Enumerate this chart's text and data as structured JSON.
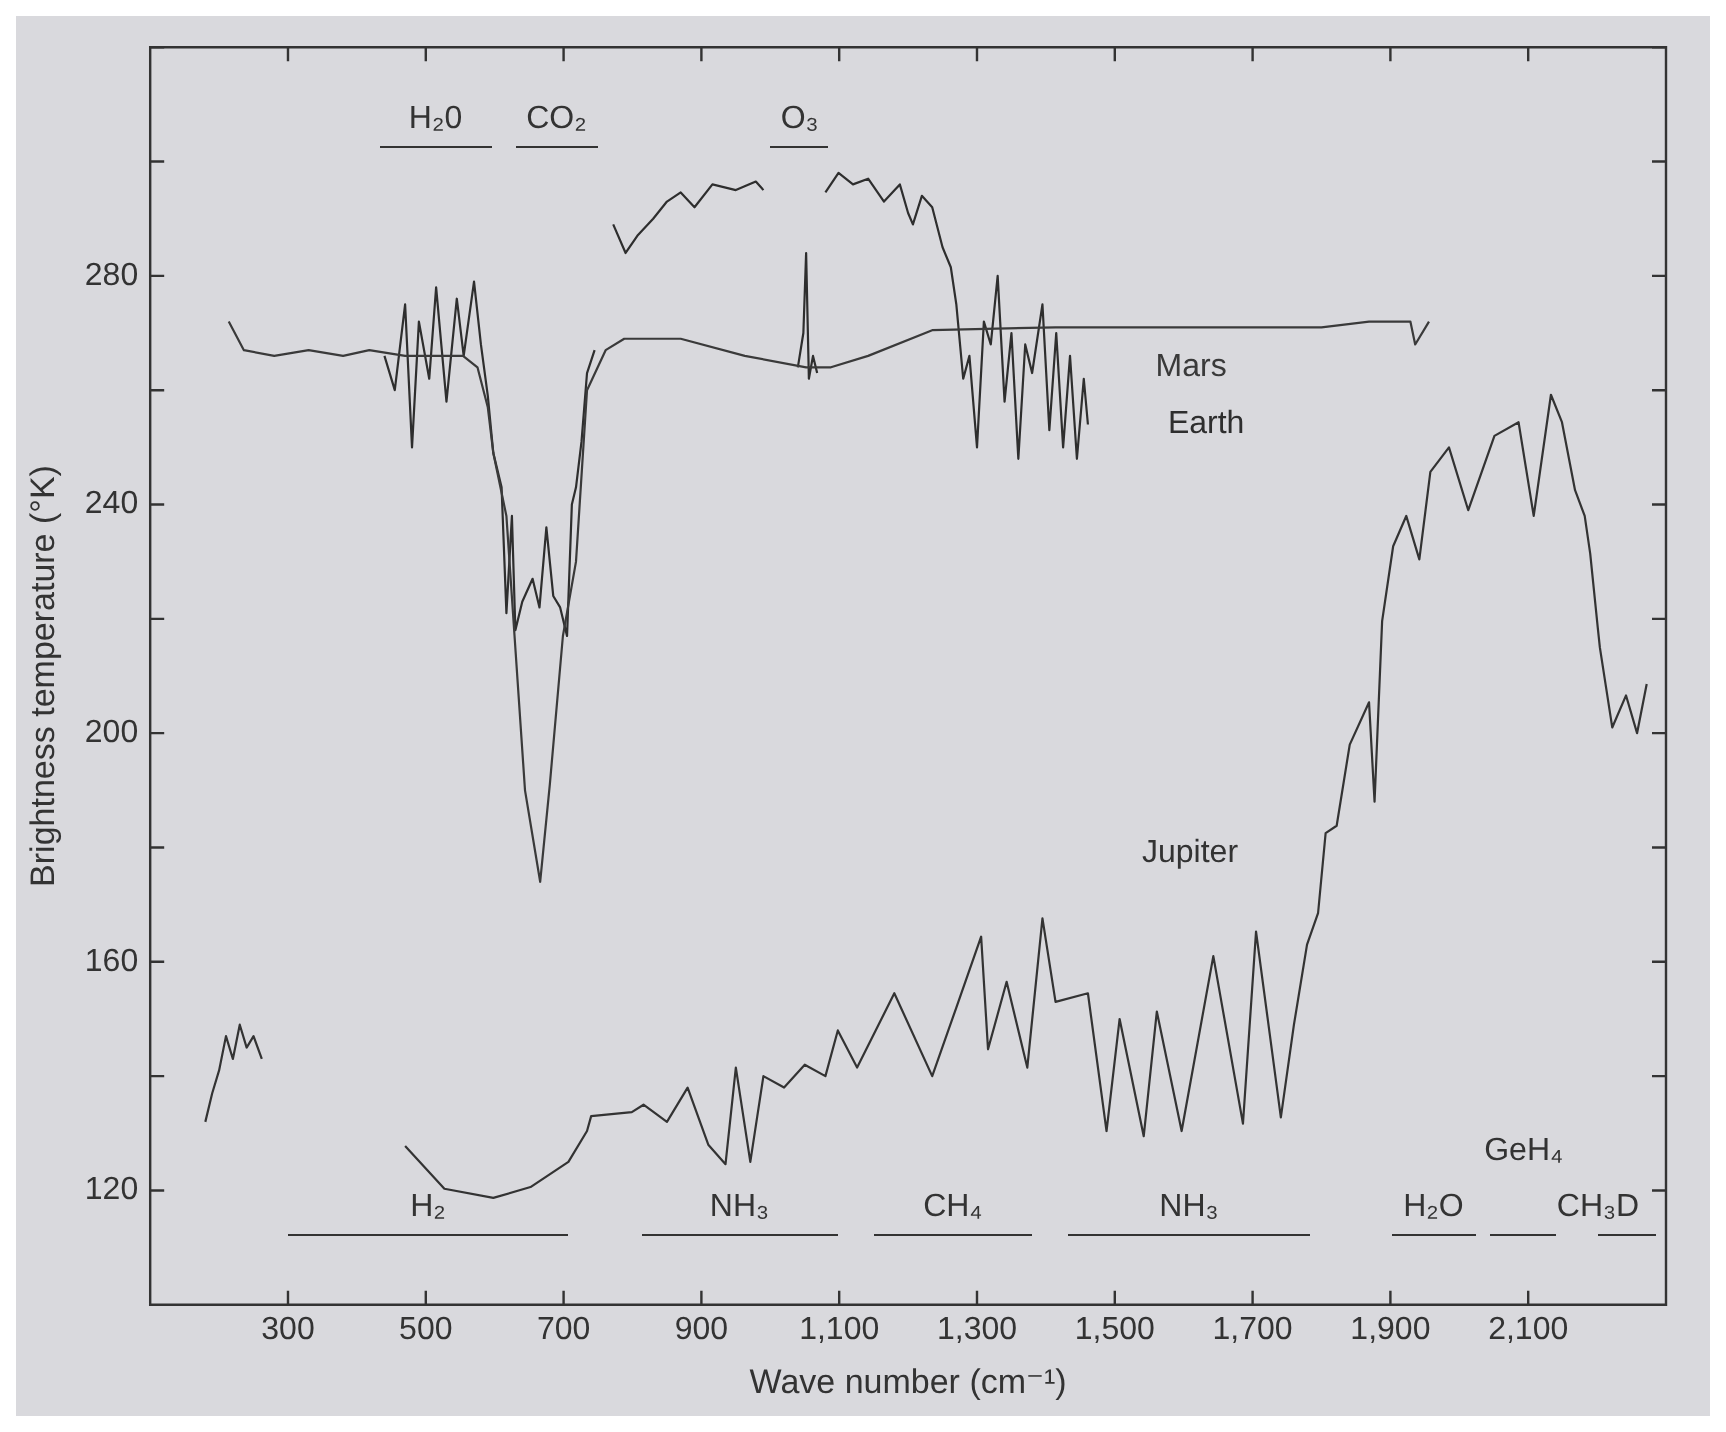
{
  "chart_data": {
    "type": "line",
    "xlabel": "Wave number (cm⁻¹)",
    "ylabel": "Brightness temperature (°K)",
    "xlim": [
      100,
      2300
    ],
    "ylim": [
      100,
      320
    ],
    "xticks": [
      300,
      500,
      700,
      900,
      {
        "value": 1100,
        "label": "1,100"
      },
      {
        "value": 1300,
        "label": "1,300"
      },
      {
        "value": 1500,
        "label": "1,500"
      },
      {
        "value": 1700,
        "label": "1,700"
      },
      {
        "value": 1900,
        "label": "1,900"
      },
      {
        "value": 2100,
        "label": "2,100"
      }
    ],
    "yticks": [
      120,
      {
        "value": 140,
        "label": null
      },
      160,
      {
        "value": 180,
        "label": null
      },
      200,
      {
        "value": 220,
        "label": null
      },
      240,
      {
        "value": 260,
        "label": null
      },
      280,
      {
        "value": 300,
        "label": null
      },
      {
        "value": 320,
        "label": null
      }
    ],
    "grid": false,
    "legend": false,
    "marker": "none",
    "line_style": "solid",
    "series": [
      {
        "name": "Mars",
        "color": "#3a3a3a",
        "x": [
          214,
          236,
          280,
          330,
          380,
          418,
          470,
          520,
          554,
          575,
          590,
          598,
          617,
          644,
          666,
          680,
          699,
          718,
          734,
          761,
          788,
          870,
          963,
          1052,
          1088,
          1142,
          1235,
          1414,
          1600,
          1800,
          1869,
          1929,
          1936,
          1956
        ],
        "values": [
          272,
          267,
          266,
          267,
          266,
          267,
          266,
          266,
          266,
          264,
          257,
          249,
          238,
          190,
          174,
          191,
          217,
          230,
          260,
          267,
          269,
          269,
          266,
          264,
          264,
          266,
          270.5,
          271,
          271,
          271,
          272,
          272,
          268,
          272
        ]
      },
      {
        "name": "Earth",
        "color": "#2e2e2e",
        "x": [
          440,
          455,
          470,
          480,
          490,
          505,
          515,
          530,
          545,
          555,
          570,
          580,
          590,
          598,
          610,
          617,
          625,
          630,
          640,
          655,
          665,
          675,
          685,
          695,
          705,
          712,
          718,
          726,
          734,
          745,
          750,
          772,
          790,
          807,
          830,
          850,
          870,
          890,
          916,
          950,
          979,
          990,
          1000,
          1040,
          1048,
          1052,
          1056,
          1062,
          1068,
          1075,
          1080,
          1099,
          1120,
          1142,
          1165,
          1188,
          1200,
          1207,
          1220,
          1235,
          1250,
          1262,
          1270,
          1280,
          1289,
          1300,
          1310,
          1320,
          1330,
          1340,
          1350,
          1360,
          1370,
          1380,
          1395,
          1405,
          1415,
          1425,
          1435,
          1445,
          1455,
          1461
        ],
        "values": [
          266,
          260,
          275,
          250,
          272,
          262,
          278,
          258,
          276,
          266,
          279,
          268,
          259,
          249,
          243,
          221,
          238,
          218,
          223,
          227,
          222,
          236,
          224,
          222,
          217,
          240,
          243,
          251,
          263,
          267,
          null,
          289,
          284,
          287,
          290,
          293,
          294.6,
          292,
          296,
          295,
          296.5,
          295,
          null,
          264,
          270,
          284,
          262,
          266,
          263,
          null,
          294.6,
          298,
          296,
          297,
          293,
          296,
          291,
          289,
          294,
          292,
          285,
          281.5,
          275,
          262,
          266,
          250,
          272,
          268,
          280,
          258,
          270,
          248,
          268,
          263,
          275,
          253,
          270,
          250,
          266,
          248,
          262,
          254
        ]
      },
      {
        "name": "Jupiter",
        "color": "#333333",
        "x": [
          180,
          190,
          200,
          210,
          220,
          230,
          240,
          250,
          262,
          300,
          470,
          527,
          598,
          652,
          707,
          734,
          740,
          799,
          816,
          850,
          880,
          910,
          935,
          950,
          971,
          990,
          1020,
          1050,
          1080,
          1098,
          1126,
          1180,
          1235,
          1270,
          1306,
          1316,
          1343,
          1373,
          1395,
          1414,
          1461,
          1488,
          1507,
          1542,
          1561,
          1597,
          1643,
          1686,
          1705,
          1741,
          1760,
          1779,
          1795,
          1806,
          1822,
          1841,
          1869,
          1877,
          1888,
          1904,
          1923,
          1942,
          1958,
          1985,
          2013,
          2051,
          2086,
          2108,
          2133,
          2149,
          2168,
          2182,
          2190,
          2201,
          2204,
          2222,
          2242,
          2258,
          2272
        ],
        "values": [
          132,
          137,
          141,
          147,
          143,
          149,
          145,
          147,
          143,
          null,
          127.8,
          120.3,
          118.7,
          120.6,
          125,
          130.4,
          133,
          133.7,
          135,
          132,
          138,
          128,
          124.6,
          141.5,
          125,
          140,
          138,
          142,
          140,
          148,
          141.5,
          154.5,
          140,
          152,
          164.4,
          144.7,
          156.5,
          141.5,
          167.6,
          153,
          154.5,
          130.4,
          150,
          129.5,
          151.3,
          130.4,
          161,
          131.7,
          165.3,
          132.8,
          149,
          163,
          168.5,
          182.5,
          183.8,
          198,
          205.4,
          188,
          219.6,
          232.7,
          238,
          230.4,
          245.7,
          250,
          239,
          252,
          254.4,
          238,
          259.2,
          254.4,
          242.5,
          238,
          231.4,
          218.4,
          215,
          201,
          206.6,
          200,
          208.6
        ]
      }
    ],
    "annotations": [
      "H₂0",
      "CO₂",
      "O₃",
      "H₂",
      "NH₃",
      "CH₄",
      "NH₃",
      "H₂O",
      "GeH₄",
      "CH₃D"
    ]
  }
}
